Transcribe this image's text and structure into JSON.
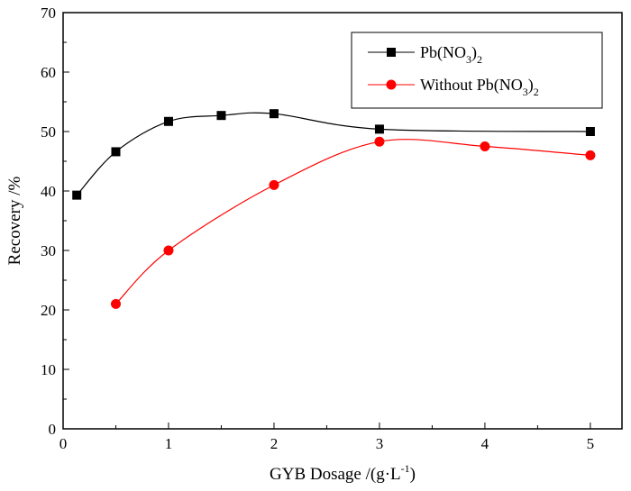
{
  "chart_data": {
    "type": "line",
    "xlabel": "GYB  Dosage /(g·L",
    "xlabel_sup": "-1",
    "xlabel_tail": ")",
    "ylabel": "Recovery /%",
    "xlim": [
      0,
      5.3
    ],
    "ylim": [
      0,
      70
    ],
    "xticks": [
      0,
      1,
      2,
      3,
      4,
      5
    ],
    "yticks": [
      0,
      10,
      20,
      30,
      40,
      50,
      60,
      70
    ],
    "xtick_labels": [
      "0",
      "1",
      "2",
      "3",
      "4",
      "5"
    ],
    "ytick_labels": [
      "0",
      "10",
      "20",
      "30",
      "40",
      "50",
      "60",
      "70"
    ],
    "grid": false,
    "legend_position": "top-right",
    "series": [
      {
        "name": "Pb(NO",
        "name_sub1": "3",
        "name_mid": ")",
        "name_sub2": "2",
        "marker": "square",
        "color": "#000000",
        "x": [
          0.13,
          0.5,
          1.0,
          1.5,
          2.0,
          3.0,
          5.0
        ],
        "y": [
          39.3,
          46.6,
          51.7,
          52.7,
          53.0,
          50.4,
          50.0
        ]
      },
      {
        "name": "Without Pb(NO",
        "name_sub1": "3",
        "name_mid": ")",
        "name_sub2": "2",
        "marker": "circle",
        "color": "#ff0000",
        "x": [
          0.5,
          1.0,
          2.0,
          3.0,
          4.0,
          5.0
        ],
        "y": [
          21.0,
          30.0,
          41.0,
          48.3,
          47.5,
          46.0
        ]
      }
    ]
  }
}
